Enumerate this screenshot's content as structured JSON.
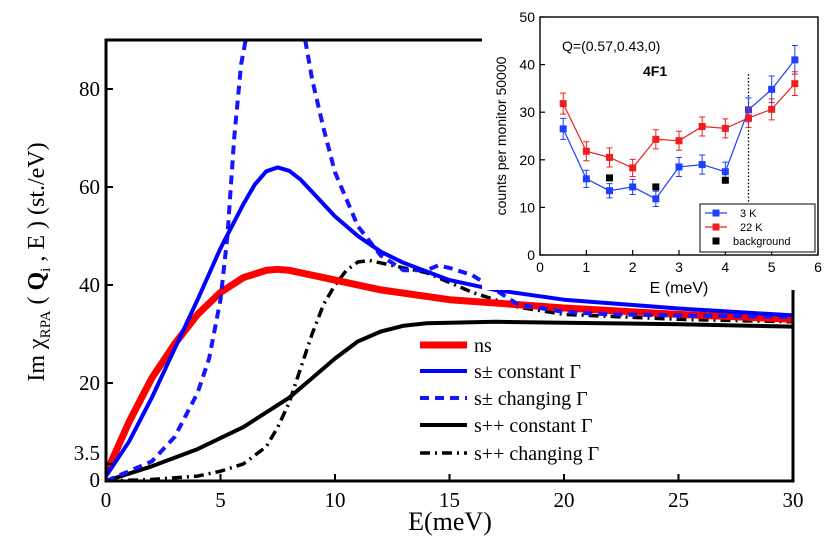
{
  "chart_data": [
    {
      "type": "line",
      "xlabel": "E(meV)",
      "ylabel": "Im χRPA ( Qi , E ) (st./eV)",
      "ylabel_parts": {
        "prefix": "Im ",
        "chi": "χ",
        "chi_sub": "RPA",
        "open": " ( ",
        "q": "Q",
        "q_sub": "i",
        "rest": " , E ) (st./eV)"
      },
      "xlim": [
        0,
        30
      ],
      "ylim": [
        0,
        90
      ],
      "x_ticks": [
        0,
        5,
        10,
        15,
        20,
        25,
        30
      ],
      "y_ticks": [
        0,
        3.5,
        20,
        40,
        60,
        80
      ],
      "x_tick_labels": [
        "0",
        "5",
        "10",
        "15",
        "20",
        "25",
        "30"
      ],
      "y_tick_labels": [
        "0",
        "3.5",
        "20",
        "40",
        "60",
        "80"
      ],
      "legend_position": "bottom-right",
      "series": [
        {
          "name": "ns",
          "color": "#ff0000",
          "style": "solid-thick",
          "x": [
            0,
            1,
            2,
            3,
            4,
            5,
            6,
            7,
            7.5,
            8,
            9,
            10,
            12,
            15,
            20,
            25,
            30
          ],
          "y": [
            1.5,
            12,
            21,
            28,
            34,
            38.5,
            41.5,
            43,
            43.2,
            43,
            42,
            41,
            39,
            37,
            35.3,
            34,
            33
          ]
        },
        {
          "name": "s± constant Γ",
          "color": "#0000ff",
          "style": "solid",
          "x": [
            0,
            1,
            2,
            3,
            4,
            5,
            6,
            6.5,
            7,
            7.5,
            8,
            8.5,
            9,
            10,
            11,
            12,
            13,
            15,
            17,
            20,
            25,
            30
          ],
          "y": [
            1,
            8,
            17,
            27,
            37,
            47.5,
            56.5,
            60.5,
            63.2,
            64,
            63.3,
            61.5,
            59,
            54,
            50,
            46.8,
            44.5,
            41,
            39,
            37,
            35.2,
            33.8
          ]
        },
        {
          "name": "s± changing Γ",
          "color": "#1515ff",
          "style": "dashed",
          "x": [
            0,
            2,
            3,
            4,
            4.5,
            5,
            5.3,
            5.6,
            5.9,
            6.1,
            null,
            8.7,
            9,
            9.5,
            10,
            11,
            12,
            13,
            14,
            14.5,
            15,
            16,
            17,
            18,
            20,
            22,
            25,
            30
          ],
          "y": [
            0,
            4,
            9,
            18,
            25,
            37,
            50,
            70,
            85,
            90,
            null,
            90,
            82,
            72,
            63,
            52,
            46,
            43,
            43,
            44,
            43.5,
            42,
            39,
            36,
            34.5,
            34,
            33.8,
            33.5
          ]
        },
        {
          "name": "s++ constant Γ",
          "color": "#000000",
          "style": "solid",
          "x": [
            0,
            2,
            4,
            6,
            8,
            9,
            10,
            11,
            12,
            13,
            14,
            15,
            17,
            20,
            25,
            30
          ],
          "y": [
            0,
            3,
            6.5,
            11,
            17,
            21,
            25,
            28.5,
            30.5,
            31.7,
            32.2,
            32.3,
            32.5,
            32.3,
            32,
            31.5
          ]
        },
        {
          "name": "s++ changing Γ",
          "color": "#000000",
          "style": "dash-dot",
          "x": [
            0,
            2,
            4,
            5,
            6,
            7,
            7.5,
            8,
            8.5,
            9,
            9.5,
            10,
            10.5,
            11,
            11.5,
            12,
            13,
            14,
            15,
            16,
            18,
            20,
            25,
            30
          ],
          "y": [
            0,
            0.3,
            1,
            2,
            3.5,
            7,
            11,
            16,
            23,
            30,
            36,
            40,
            43,
            44.7,
            45,
            44.5,
            43.5,
            42.5,
            40.5,
            38.5,
            35.5,
            34,
            33,
            32.5
          ]
        }
      ],
      "legend": [
        {
          "label": "ns"
        },
        {
          "label": "s± constant Γ"
        },
        {
          "label": "s± changing Γ"
        },
        {
          "label": "s++ constant Γ"
        },
        {
          "label": "s++ changing Γ"
        }
      ]
    },
    {
      "type": "line",
      "title": "Q=(0.57,0.43,0)",
      "annotation": "4F1",
      "xlabel": "E (meV)",
      "ylabel": "counts per monitor 50000",
      "xlim": [
        0,
        6
      ],
      "ylim": [
        0,
        50
      ],
      "x_ticks": [
        0,
        1,
        2,
        3,
        4,
        5,
        6
      ],
      "y_ticks": [
        0,
        10,
        20,
        30,
        40,
        50
      ],
      "x_tick_labels": [
        "0",
        "1",
        "2",
        "3",
        "4",
        "5",
        "6"
      ],
      "y_tick_labels": [
        "0",
        "10",
        "20",
        "30",
        "40",
        "50"
      ],
      "vertical_line_x": 4.5,
      "legend_position": "bottom-right",
      "series": [
        {
          "name": "3 K",
          "color": "#1f3fff",
          "marker": "square",
          "x": [
            0.5,
            1,
            1.5,
            2,
            2.5,
            3,
            3.5,
            4,
            4.5,
            5,
            5.5
          ],
          "y": [
            26.5,
            16,
            13.5,
            14.3,
            11.8,
            18.5,
            19,
            17.5,
            30.5,
            34.8,
            41
          ],
          "err": [
            2.2,
            1.8,
            1.5,
            1.6,
            1.6,
            2.0,
            2.0,
            2.0,
            2.5,
            2.8,
            3.0
          ]
        },
        {
          "name": "22 K",
          "color": "#ef1f1f",
          "marker": "square",
          "x": [
            0.5,
            1,
            1.5,
            2,
            2.5,
            3,
            3.5,
            4,
            4.5,
            5,
            5.5
          ],
          "y": [
            31.8,
            21.8,
            20.5,
            18.3,
            24.3,
            24,
            27,
            26.6,
            28.8,
            30.6,
            36
          ],
          "err": [
            2.2,
            2.0,
            2.0,
            1.8,
            2.0,
            2.0,
            2.0,
            2.0,
            2.0,
            2.2,
            2.5
          ]
        },
        {
          "name": "background",
          "color": "#000000",
          "marker": "square",
          "x": [
            1.5,
            2.5,
            4
          ],
          "y": [
            16.2,
            14.3,
            15.7
          ]
        }
      ],
      "legend": [
        {
          "label": "3 K"
        },
        {
          "label": "22 K"
        },
        {
          "label": "background"
        }
      ]
    }
  ]
}
